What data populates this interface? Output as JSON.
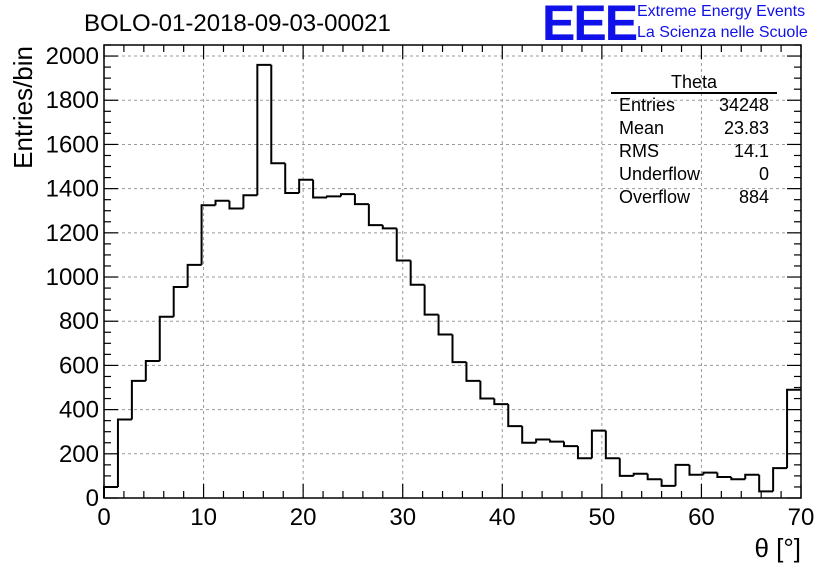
{
  "title": "BOLO-01-2018-09-03-00021",
  "logo": {
    "mark": "EEE",
    "line1": "Extreme Energy Events",
    "line2": "La Scienza nelle Scuole",
    "color": "#1010e8"
  },
  "stats_box": {
    "title": "Theta",
    "rows": [
      {
        "label": "Entries",
        "value": "34248"
      },
      {
        "label": "Mean",
        "value": "23.83"
      },
      {
        "label": "RMS",
        "value": "14.1"
      },
      {
        "label": "Underflow",
        "value": "0"
      },
      {
        "label": "Overflow",
        "value": "884"
      }
    ]
  },
  "chart_data": {
    "type": "bar",
    "histogram": true,
    "xlabel": "θ [°]",
    "ylabel": "Entries/bin",
    "xlim": [
      0,
      70
    ],
    "ylim": [
      0,
      2050
    ],
    "bin_width": 1.4,
    "x_ticks": [
      0,
      10,
      20,
      30,
      40,
      50,
      60,
      70
    ],
    "y_ticks": [
      0,
      200,
      400,
      600,
      800,
      1000,
      1200,
      1400,
      1600,
      1800,
      2000
    ],
    "grid": true,
    "bin_edges_start": 0,
    "values": [
      50,
      355,
      530,
      620,
      820,
      955,
      1055,
      1325,
      1345,
      1310,
      1370,
      1960,
      1515,
      1380,
      1440,
      1360,
      1365,
      1375,
      1330,
      1235,
      1220,
      1075,
      965,
      830,
      740,
      615,
      530,
      450,
      425,
      325,
      250,
      265,
      255,
      235,
      180,
      305,
      180,
      100,
      110,
      85,
      55,
      150,
      105,
      115,
      95,
      85,
      105,
      30,
      135,
      490
    ],
    "line_color": "#000000"
  }
}
